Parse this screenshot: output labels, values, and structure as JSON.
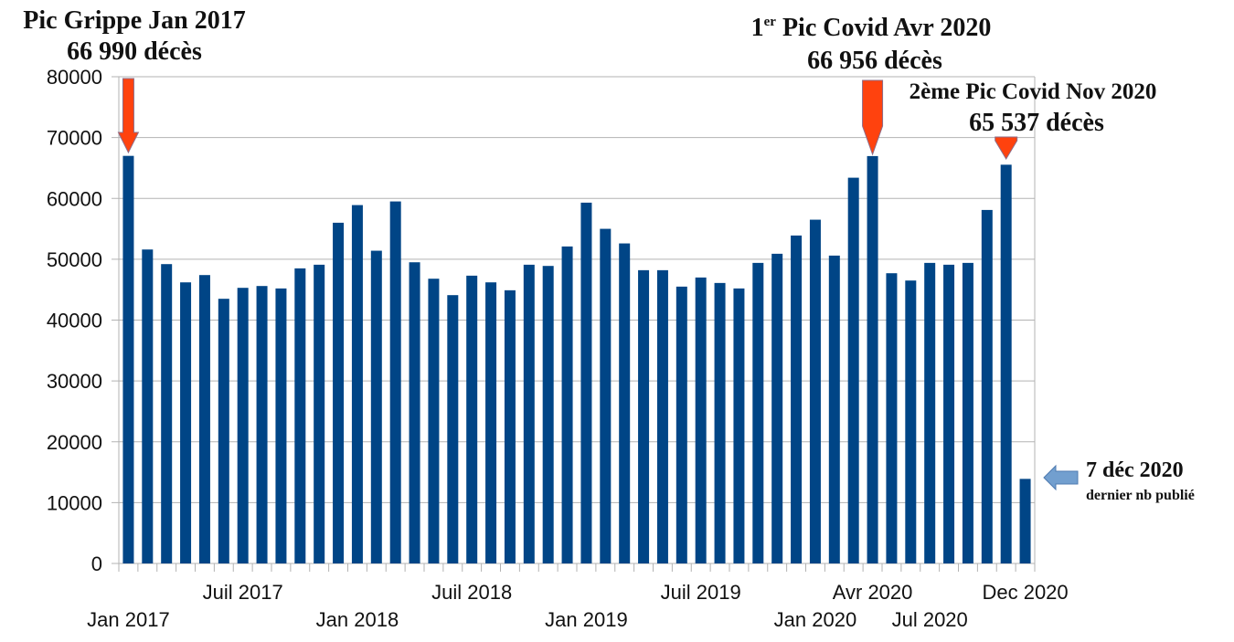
{
  "chart_data": {
    "type": "bar",
    "title": "",
    "xlabel": "",
    "ylabel": "",
    "ylim": [
      0,
      80000
    ],
    "yticks": [
      0,
      10000,
      20000,
      30000,
      40000,
      50000,
      60000,
      70000,
      80000
    ],
    "ytick_labels": [
      "0",
      "10000",
      "20000",
      "30000",
      "40000",
      "50000",
      "60000",
      "70000",
      "80000"
    ],
    "grid": true,
    "bar_color": "#004586",
    "categories": [
      "Jan 2017",
      "Feb 2017",
      "Mar 2017",
      "Apr 2017",
      "May 2017",
      "Jun 2017",
      "Jul 2017",
      "Aug 2017",
      "Sep 2017",
      "Oct 2017",
      "Nov 2017",
      "Dec 2017",
      "Jan 2018",
      "Feb 2018",
      "Mar 2018",
      "Apr 2018",
      "May 2018",
      "Jun 2018",
      "Jul 2018",
      "Aug 2018",
      "Sep 2018",
      "Oct 2018",
      "Nov 2018",
      "Dec 2018",
      "Jan 2019",
      "Feb 2019",
      "Mar 2019",
      "Apr 2019",
      "May 2019",
      "Jun 2019",
      "Jul 2019",
      "Aug 2019",
      "Sep 2019",
      "Oct 2019",
      "Nov 2019",
      "Dec 2019",
      "Jan 2020",
      "Feb 2020",
      "Mar 2020",
      "Apr 2020",
      "May 2020",
      "Jun 2020",
      "Jul 2020",
      "Aug 2020",
      "Sep 2020",
      "Oct 2020",
      "Nov 2020",
      "Dec 2020"
    ],
    "values": [
      66990,
      51600,
      49200,
      46200,
      47400,
      43500,
      45300,
      45600,
      45200,
      48500,
      49100,
      56000,
      58900,
      51400,
      59500,
      49500,
      46800,
      44100,
      47300,
      46200,
      44900,
      49100,
      48900,
      52100,
      59300,
      55000,
      52600,
      48200,
      48200,
      45500,
      47000,
      46100,
      45200,
      49400,
      50900,
      53900,
      56500,
      50600,
      63400,
      66956,
      47700,
      46500,
      49400,
      49100,
      49400,
      58100,
      65537,
      13900
    ],
    "x_tick_labels": [
      {
        "index": 0,
        "label": "Jan 2017",
        "row": 2
      },
      {
        "index": 6,
        "label": "Juil 2017",
        "row": 1
      },
      {
        "index": 12,
        "label": "Jan 2018",
        "row": 2
      },
      {
        "index": 18,
        "label": "Juil 2018",
        "row": 1
      },
      {
        "index": 24,
        "label": "Jan 2019",
        "row": 2
      },
      {
        "index": 30,
        "label": "Juil 2019",
        "row": 1
      },
      {
        "index": 36,
        "label": "Jan 2020",
        "row": 2
      },
      {
        "index": 39,
        "label": "Avr 2020",
        "row": 1
      },
      {
        "index": 42,
        "label": "Jul 2020",
        "row": 2
      },
      {
        "index": 47,
        "label": "Dec 2020",
        "row": 1
      }
    ],
    "annotations": [
      {
        "index": 0,
        "line1": "Pic Grippe Jan 2017",
        "line2": "66 990 décès",
        "arrow": "down",
        "color": "#ff420e"
      },
      {
        "index": 39,
        "line1_sup_base": "1",
        "line1_sup": "er",
        "line1_rest": " Pic Covid Avr 2020",
        "line2": "66 956 décès",
        "arrow": "down",
        "color": "#ff420e"
      },
      {
        "index": 46,
        "line1": "2ème Pic Covid Nov 2020",
        "line2": "65 537 décès",
        "arrow": "down",
        "color": "#ff420e"
      },
      {
        "index": 47,
        "line1": "7 déc 2020",
        "line2": "dernier nb publié",
        "arrow": "left",
        "color": "#729fcf"
      }
    ]
  }
}
